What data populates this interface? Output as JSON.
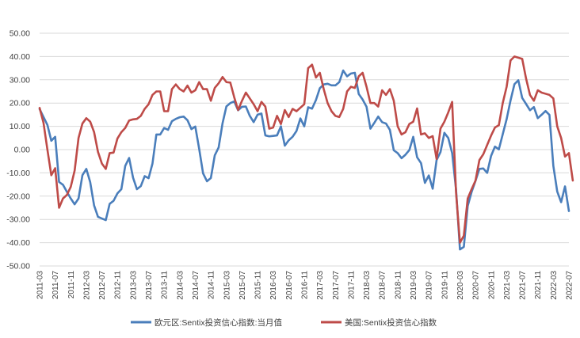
{
  "chart_data": {
    "type": "line",
    "title": "",
    "xlabel": "",
    "ylabel": "",
    "ylim": [
      -50,
      50
    ],
    "yticks": [
      50,
      40,
      30,
      20,
      10,
      0,
      -10,
      -20,
      -30,
      -40,
      -50
    ],
    "ytick_labels": [
      "50.00",
      "40.00",
      "30.00",
      "20.00",
      "10.00",
      "0.00",
      "-10.00",
      "-20.00",
      "-30.00",
      "-40.00",
      "-50.00"
    ],
    "x_start": "2011-03",
    "x_end": "2022-07",
    "xtick_labels": [
      "2011-03",
      "2011-07",
      "2011-11",
      "2012-03",
      "2012-07",
      "2012-11",
      "2013-03",
      "2013-07",
      "2013-11",
      "2014-03",
      "2014-07",
      "2014-11",
      "2015-03",
      "2015-07",
      "2015-11",
      "2016-03",
      "2016-07",
      "2016-11",
      "2017-03",
      "2017-07",
      "2017-11",
      "2018-03",
      "2018-07",
      "2018-11",
      "2019-03",
      "2019-07",
      "2019-11",
      "2020-03",
      "2020-07",
      "2020-11",
      "2021-03",
      "2021-07",
      "2021-11",
      "2022-03",
      "2022-07"
    ],
    "grid": true,
    "legend_position": "bottom",
    "series": [
      {
        "name": "欧元区:Sentix投资信心指数:当月值",
        "color": "#4a7ebb",
        "values": [
          17.4,
          14.0,
          10.6,
          3.8,
          5.5,
          -13.9,
          -15.1,
          -18.1,
          -21.0,
          -23.5,
          -21.0,
          -11.0,
          -8.3,
          -14.0,
          -24.0,
          -28.9,
          -29.6,
          -30.3,
          -23.3,
          -22.0,
          -18.8,
          -17.0,
          -7.0,
          -3.6,
          -12.0,
          -17.0,
          -15.7,
          -11.4,
          -12.3,
          -6.0,
          6.5,
          6.5,
          9.3,
          8.5,
          12.2,
          13.2,
          13.9,
          14.2,
          12.6,
          8.8,
          9.9,
          0.3,
          -10.2,
          -13.6,
          -12.2,
          -2.5,
          0.9,
          11.3,
          18.6,
          20.0,
          20.7,
          16.9,
          18.4,
          18.5,
          14.5,
          11.8,
          15.0,
          15.5,
          6.1,
          5.7,
          5.9,
          6.1,
          10.0,
          1.7,
          4.0,
          5.5,
          8.0,
          13.4,
          10.0,
          18.2,
          17.6,
          21.3,
          26.4,
          28.0,
          28.3,
          27.6,
          27.6,
          29.0,
          34.0,
          31.5,
          32.7,
          33.0,
          23.9,
          21.5,
          18.4,
          9.0,
          11.5,
          14.2,
          11.8,
          11.2,
          8.5,
          -0.3,
          -1.5,
          -3.7,
          -2.2,
          -0.2,
          5.5,
          -3.3,
          -5.8,
          -14.3,
          -11.1,
          -16.8,
          -4.5,
          -1.1,
          7.2,
          5.0,
          -1.5,
          -17.1,
          -42.9,
          -41.8,
          -24.2,
          -18.2,
          -13.4,
          -8.3,
          -8.1,
          -10.0,
          -2.7,
          1.3,
          0.1,
          6.6,
          13.1,
          21.1,
          28.1,
          29.8,
          22.2,
          19.6,
          16.9,
          18.3,
          13.5,
          15.0,
          16.6,
          14.9,
          -7.0,
          -18.0,
          -22.6,
          -15.8,
          -26.4
        ]
      },
      {
        "name": "美国:Sentix投资信心指数",
        "color": "#be4b48",
        "values": [
          17.9,
          11.5,
          0.0,
          -11.0,
          -8.0,
          -25.0,
          -21.0,
          -19.5,
          -16.0,
          -9.0,
          5.0,
          11.2,
          13.5,
          12.0,
          7.5,
          -1.0,
          -6.0,
          -8.3,
          -1.5,
          -1.3,
          4.8,
          7.5,
          9.3,
          12.5,
          13.0,
          13.2,
          14.5,
          17.5,
          19.5,
          23.5,
          25.0,
          25.0,
          16.5,
          16.5,
          26.0,
          28.0,
          26.0,
          25.0,
          27.5,
          24.5,
          25.5,
          29.0,
          26.0,
          26.0,
          21.0,
          26.5,
          28.5,
          31.2,
          29.0,
          28.8,
          22.5,
          17.0,
          21.0,
          24.5,
          22.0,
          19.5,
          16.5,
          20.5,
          18.5,
          9.0,
          9.5,
          14.5,
          11.0,
          17.0,
          14.0,
          17.5,
          16.5,
          18.0,
          19.5,
          35.0,
          36.5,
          31.0,
          33.0,
          26.0,
          20.0,
          16.5,
          14.5,
          14.0,
          17.5,
          25.0,
          27.0,
          26.5,
          31.5,
          33.0,
          27.0,
          20.0,
          20.0,
          18.5,
          25.5,
          23.5,
          26.0,
          21.0,
          10.0,
          6.5,
          7.5,
          11.0,
          12.0,
          17.7,
          6.5,
          7.0,
          5.0,
          5.8,
          -4.0,
          9.0,
          12.0,
          16.0,
          20.5,
          -18.4,
          -40.0,
          -37.0,
          -21.0,
          -17.0,
          -13.3,
          -4.5,
          -2.0,
          2.0,
          6.0,
          9.5,
          10.5,
          20.0,
          27.0,
          38.3,
          40.0,
          39.5,
          39.0,
          30.5,
          23.5,
          21.0,
          25.5,
          24.5,
          24.0,
          23.5,
          22.0,
          10.0,
          5.0,
          -3.0,
          -1.5,
          -13.3
        ]
      }
    ]
  }
}
